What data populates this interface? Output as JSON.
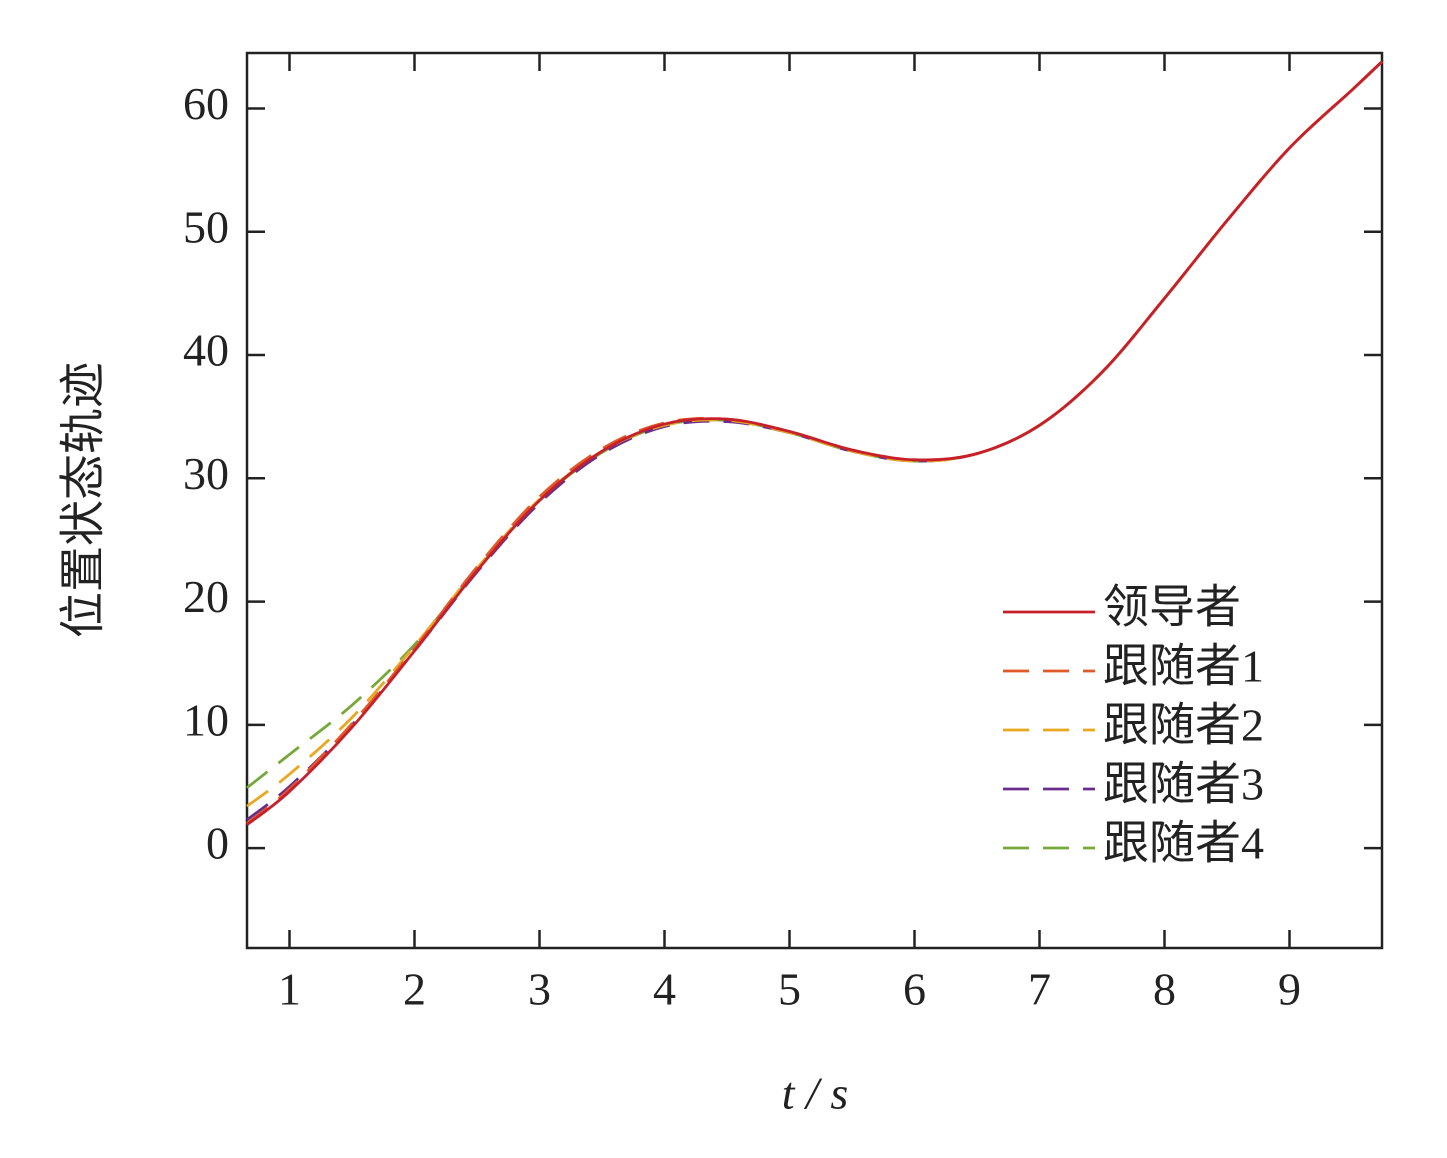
{
  "chart_data": {
    "type": "line",
    "x_label": "t / s",
    "y_label": "位置状态轨迹",
    "x": [
      0.66,
      1,
      1.5,
      2,
      2.5,
      3,
      3.5,
      4,
      4.5,
      5,
      5.5,
      6,
      6.5,
      7,
      7.5,
      8,
      8.5,
      9,
      9.5,
      9.74
    ],
    "series": [
      {
        "name": "领导者",
        "color": "#c8202a",
        "linestyle": "solid",
        "values": [
          1.9,
          4.6,
          9.8,
          16,
          22.5,
          28.2,
          32.2,
          34.4,
          34.8,
          33.8,
          32.3,
          31.5,
          32,
          34.3,
          38.6,
          44.6,
          50.9,
          56.8,
          61.5,
          63.8
        ]
      },
      {
        "name": "跟随者1",
        "color": "#e05a28",
        "linestyle": "dashed",
        "values": [
          2.0,
          4.8,
          10.1,
          16.2,
          22.8,
          28.5,
          32.4,
          34.5,
          34.8,
          33.8,
          32.3,
          31.5,
          32,
          34.3,
          38.6,
          44.6,
          50.9,
          56.8,
          61.5,
          63.8
        ]
      },
      {
        "name": "跟随者2",
        "color": "#e8a820",
        "linestyle": "dashed",
        "values": [
          3.4,
          6.0,
          10.6,
          16.4,
          22.7,
          28.3,
          32.2,
          34.3,
          34.7,
          33.7,
          32.2,
          31.4,
          32,
          34.3,
          38.6,
          44.6,
          50.9,
          56.8,
          61.5,
          63.8
        ]
      },
      {
        "name": "跟随者3",
        "color": "#6a2e8a",
        "linestyle": "dashed",
        "values": [
          2.3,
          5.0,
          10.0,
          16.0,
          22.4,
          28.0,
          32.0,
          34.2,
          34.6,
          33.7,
          32.2,
          31.4,
          32,
          34.3,
          38.6,
          44.6,
          50.9,
          56.8,
          61.5,
          63.8
        ]
      },
      {
        "name": "跟随者4",
        "color": "#76a83a",
        "linestyle": "dashed",
        "values": [
          4.9,
          7.6,
          11.6,
          16.5,
          22.6,
          28.2,
          32.1,
          34.3,
          34.7,
          33.7,
          32.2,
          31.4,
          32,
          34.3,
          38.6,
          44.6,
          50.9,
          56.8,
          61.5,
          63.8
        ]
      }
    ],
    "xlim": [
      0.66,
      9.74
    ],
    "ylim": [
      -8.1,
      64.5
    ],
    "xticks": [
      1,
      2,
      3,
      4,
      5,
      6,
      7,
      8,
      9
    ],
    "yticks": [
      0,
      10,
      20,
      30,
      40,
      50,
      60
    ],
    "legend": "lower right"
  }
}
